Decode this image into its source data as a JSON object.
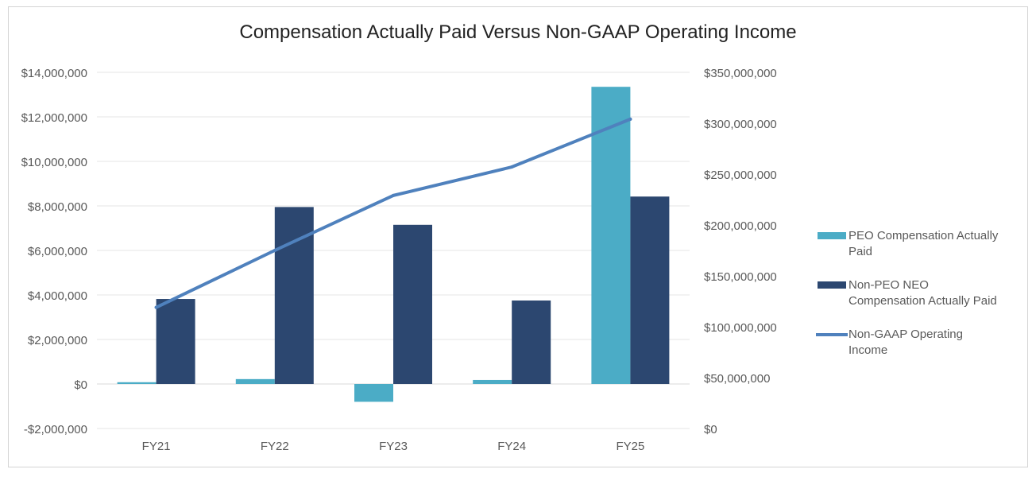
{
  "chart_data": {
    "type": "bar",
    "title": "Compensation Actually Paid Versus Non-GAAP Operating Income",
    "categories": [
      "FY21",
      "FY22",
      "FY23",
      "FY24",
      "FY25"
    ],
    "series": [
      {
        "name": "PEO Compensation Actually Paid",
        "name_lines": [
          "PEO Compensation Actually",
          "Paid"
        ],
        "kind": "bar",
        "axis": "left",
        "color": "#4bacc6",
        "values": [
          80000,
          220000,
          -800000,
          180000,
          13350000
        ]
      },
      {
        "name": "Non-PEO NEO Compensation Actually Paid",
        "name_lines": [
          "Non-PEO NEO",
          "Compensation Actually Paid"
        ],
        "kind": "bar",
        "axis": "left",
        "color": "#2c4770",
        "values": [
          3820000,
          7950000,
          7150000,
          3750000,
          8420000
        ]
      },
      {
        "name": "Non-GAAP Operating Income",
        "name_lines": [
          "Non-GAAP Operating",
          "Income"
        ],
        "kind": "line",
        "axis": "right",
        "color": "#4f81bd",
        "values": [
          119000000,
          175000000,
          229000000,
          257000000,
          304000000
        ]
      }
    ],
    "y_left": {
      "range": [
        -2000000,
        14000000
      ],
      "ticks": [
        -2000000,
        0,
        2000000,
        4000000,
        6000000,
        8000000,
        10000000,
        12000000,
        14000000
      ],
      "tick_labels": [
        "-$2,000,000",
        "$0",
        "$2,000,000",
        "$4,000,000",
        "$6,000,000",
        "$8,000,000",
        "$10,000,000",
        "$12,000,000",
        "$14,000,000"
      ]
    },
    "y_right": {
      "range": [
        0,
        350000000
      ],
      "ticks": [
        0,
        50000000,
        100000000,
        150000000,
        200000000,
        250000000,
        300000000,
        350000000
      ],
      "tick_labels": [
        "$0",
        "$50,000,000",
        "$100,000,000",
        "$150,000,000",
        "$200,000,000",
        "$250,000,000",
        "$300,000,000",
        "$350,000,000"
      ]
    },
    "grid": true,
    "legend_position": "right"
  }
}
